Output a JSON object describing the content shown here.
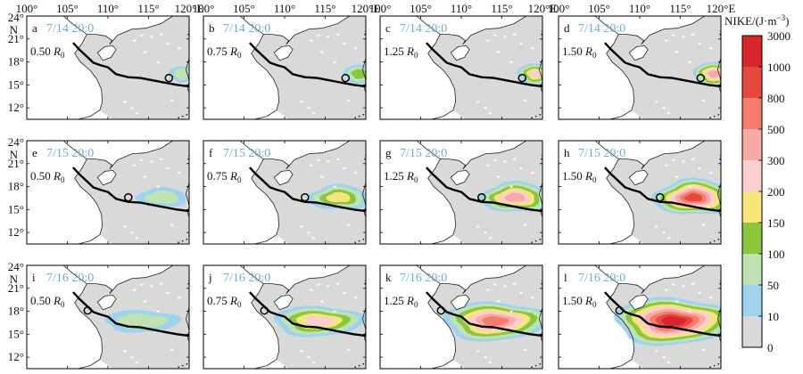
{
  "chart_data": {
    "type": "heatmap",
    "lon_ticks": [
      "100°",
      "105°",
      "110°",
      "115°",
      "120°E"
    ],
    "lat_ticks": [
      "24°",
      "21°",
      "18°",
      "15°",
      "12°"
    ],
    "lat_unit": "N",
    "xlim": [
      100,
      120
    ],
    "ylim": [
      10.5,
      24
    ],
    "row_dates": [
      "7/14 20:0",
      "7/15 20:0",
      "7/16 20:0"
    ],
    "column_labels": [
      "0.50",
      "0.75",
      "1.25",
      "1.50"
    ],
    "radius_symbol": "R",
    "radius_subscript": "0",
    "panel_letters": [
      "a",
      "b",
      "c",
      "d",
      "e",
      "f",
      "g",
      "h",
      "i",
      "j",
      "k",
      "l"
    ],
    "track_lonlat": [
      [
        120,
        14.8
      ],
      [
        118.5,
        15.0
      ],
      [
        117,
        15.3
      ],
      [
        115.5,
        15.6
      ],
      [
        114,
        15.9
      ],
      [
        112.5,
        16.0
      ],
      [
        111,
        16.4
      ],
      [
        110,
        17.3
      ],
      [
        109,
        17.6
      ],
      [
        108.2,
        17.9
      ],
      [
        107.5,
        18.6
      ],
      [
        106.5,
        19.6
      ],
      [
        105.7,
        20.5
      ]
    ],
    "typhoon_center_lonlat": [
      [
        117.5,
        15.9
      ],
      [
        112.5,
        16.6
      ],
      [
        107.5,
        18.1
      ]
    ],
    "colorbar": {
      "title": "NIKE/(J·m",
      "title_exponent": "−3",
      "title_close": ")",
      "tick_labels": [
        "3000",
        "1000",
        "800",
        "500",
        "300",
        "200",
        "150",
        "100",
        "50",
        "10",
        "0"
      ],
      "colors": [
        "#d7262b",
        "#e8473f",
        "#f47d6e",
        "#f8aaa4",
        "#fbcfd0",
        "#f6e57a",
        "#8cc63f",
        "#bfe3b3",
        "#9dd3ee",
        "#d9d9d9"
      ]
    }
  }
}
